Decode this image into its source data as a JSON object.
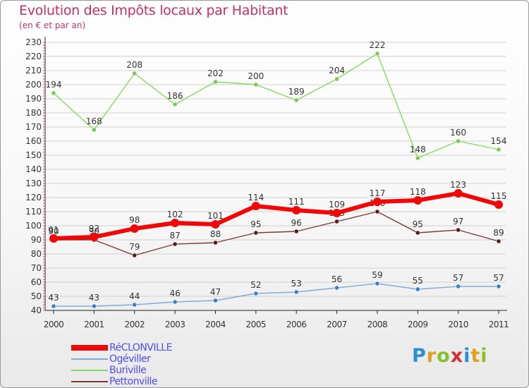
{
  "header": {
    "title": "Evolution des Impôts locaux par Habitant",
    "subtitle": "(en € et par an)"
  },
  "colors": {
    "title": "#c0306a",
    "axis": "#222222",
    "grid": "#d0d0d0",
    "legend_text": "#4d4df0"
  },
  "brand": {
    "letters": [
      "P",
      "r",
      "o",
      "x",
      "i",
      "t",
      "i"
    ],
    "colors": [
      "#2a8fd6",
      "#e0a020",
      "#8ac030",
      "#d43030",
      "#2a8fd6",
      "#e0a020",
      "#8ac030"
    ]
  },
  "chart_data": {
    "type": "line",
    "title": "Evolution des Impôts locaux par Habitant",
    "subtitle": "(en € et par an)",
    "xlabel": "",
    "ylabel": "",
    "x": [
      "2000",
      "2001",
      "2002",
      "2003",
      "2004",
      "2005",
      "2006",
      "2007",
      "2008",
      "2009",
      "2010",
      "2011"
    ],
    "ylim": [
      40,
      230
    ],
    "yticks": [
      40,
      50,
      60,
      70,
      80,
      90,
      100,
      110,
      120,
      130,
      140,
      150,
      160,
      170,
      180,
      190,
      200,
      210,
      220,
      230
    ],
    "grid": "horizontal",
    "legend_position": "bottom-left",
    "series": [
      {
        "name": "Buriville",
        "color": "#88d860",
        "dot": "#7ac850",
        "values": [
          194,
          168,
          208,
          186,
          202,
          200,
          189,
          204,
          222,
          148,
          160,
          154
        ],
        "labels": [
          "194",
          "168",
          "208",
          "186",
          "202",
          "200",
          "189",
          "204",
          "222",
          "148",
          "160",
          "154"
        ],
        "thick": false
      },
      {
        "name": "Pettonville",
        "color": "#7a3838",
        "dot": "#5a1a1a",
        "values": [
          90,
          90,
          79,
          87,
          88,
          95,
          96,
          103,
          110,
          95,
          97,
          89
        ],
        "labels": [
          "90",
          "90",
          "79",
          "87",
          "88",
          "95",
          "96",
          "103",
          "110",
          "95",
          "97",
          "89"
        ],
        "thick": false
      },
      {
        "name": "Ogéviller",
        "color": "#80aad8",
        "dot": "#3a80c0",
        "values": [
          43,
          43,
          44,
          46,
          47,
          52,
          53,
          56,
          59,
          55,
          57,
          57
        ],
        "labels": [
          "43",
          "43",
          "44",
          "46",
          "47",
          "52",
          "53",
          "56",
          "59",
          "55",
          "57",
          "57"
        ],
        "thick": false
      },
      {
        "name": "RéCLONVILLE",
        "color": "#f00808",
        "dot": "#f00808",
        "values": [
          91,
          92,
          98,
          102,
          101,
          114,
          111,
          109,
          117,
          118,
          123,
          115
        ],
        "labels": [
          "91",
          "92",
          "98",
          "102",
          "101",
          "114",
          "111",
          "109",
          "117",
          "118",
          "123",
          "115"
        ],
        "thick": true
      }
    ],
    "legend": [
      {
        "name": "RéCLONVILLE",
        "color": "#f00808",
        "thick": true
      },
      {
        "name": "Ogéviller",
        "color": "#80aad8",
        "thick": false
      },
      {
        "name": "Buriville",
        "color": "#88d860",
        "thick": false
      },
      {
        "name": "Pettonville",
        "color": "#7a3838",
        "thick": false
      }
    ]
  }
}
